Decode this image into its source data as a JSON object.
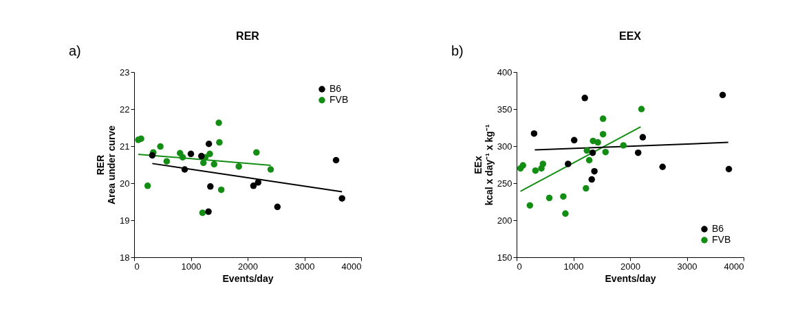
{
  "chart_data": [
    {
      "type": "scatter",
      "title": "RER",
      "xlabel": "Events/day",
      "ylabel": "RER\nArea under curve",
      "annotations": [
        "a)"
      ],
      "xlim": [
        0,
        4000
      ],
      "xticks": [
        0,
        1000,
        2000,
        3000,
        4000
      ],
      "ylim": [
        18,
        23
      ],
      "yticks": [
        18,
        19,
        20,
        21,
        22,
        23
      ],
      "grid": false,
      "legend": "top right",
      "series": [
        {
          "name": "B6",
          "color": "#000000",
          "marker": "circle",
          "x": [
            320,
            891,
            1000,
            1185,
            1317,
            1343,
            1310,
            2102,
            2185,
            2525,
            3558,
            3663
          ],
          "values": [
            20.75,
            20.37,
            20.79,
            20.73,
            21.06,
            19.91,
            19.23,
            19.93,
            20.02,
            19.36,
            20.62,
            19.59
          ]
        },
        {
          "name": "FVB",
          "color": "#138d13",
          "marker": "circle",
          "x": [
            73,
            122,
            337,
            462,
            574,
            238,
            809,
            855,
            1205,
            1221,
            1254,
            1333,
            1409,
            1492,
            1502,
            1535,
            1845,
            2155,
            2406
          ],
          "values": [
            21.17,
            21.2,
            20.83,
            20.99,
            20.59,
            19.93,
            20.81,
            20.7,
            19.2,
            20.55,
            20.7,
            20.79,
            20.51,
            21.63,
            21.1,
            19.82,
            20.45,
            20.83,
            20.37
          ]
        },
        {
          "type": "line",
          "color": "#000000",
          "marker": "none",
          "x": [
            320,
            3663
          ],
          "values": [
            20.53,
            19.77
          ]
        },
        {
          "type": "line",
          "color": "#138d13",
          "marker": "none",
          "x": [
            73,
            2406
          ],
          "values": [
            20.78,
            20.48
          ]
        }
      ]
    },
    {
      "type": "scatter",
      "title": "EEX",
      "xlabel": "Events/day",
      "ylabel": "EEx\nkcal x day⁻¹ x kg⁻¹",
      "annotations": [
        "b)"
      ],
      "xlim": [
        0,
        4000
      ],
      "xticks": [
        0,
        1000,
        2000,
        3000,
        4000
      ],
      "ylim": [
        150,
        400
      ],
      "yticks": [
        150,
        200,
        250,
        300,
        350,
        400
      ],
      "grid": false,
      "legend": "bottom right",
      "series": [
        {
          "name": "B6",
          "color": "#000000",
          "marker": "circle",
          "x": [
            308,
            1015,
            1202,
            907,
            1340,
            1371,
            1324,
            2142,
            2223,
            2572,
            3631,
            3740
          ],
          "values": [
            317,
            308,
            365,
            276,
            291,
            266,
            255,
            291,
            312,
            272,
            369,
            269
          ]
        },
        {
          "name": "FVB",
          "color": "#138d13",
          "marker": "circle",
          "x": [
            68,
            112,
            332,
            234,
            437,
            464,
            576,
            823,
            860,
            1222,
            1239,
            1280,
            1347,
            1432,
            1523,
            1523,
            1567,
            1882,
            2200
          ],
          "values": [
            270,
            274,
            267,
            220,
            270,
            276,
            230,
            232,
            209,
            243,
            294,
            281,
            307,
            305,
            337,
            316,
            292,
            301,
            350
          ]
        },
        {
          "type": "line",
          "color": "#000000",
          "marker": "none",
          "x": [
            321,
            3729
          ],
          "values": [
            295,
            305
          ]
        },
        {
          "type": "line",
          "color": "#138d13",
          "marker": "none",
          "x": [
            68,
            2186
          ],
          "values": [
            239,
            326
          ]
        }
      ]
    }
  ]
}
